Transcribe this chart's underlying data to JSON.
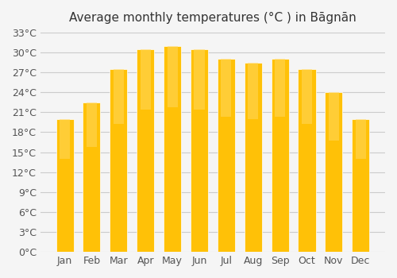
{
  "title": "Average monthly temperatures (°C ) in Bāgnān",
  "months": [
    "Jan",
    "Feb",
    "Mar",
    "Apr",
    "May",
    "Jun",
    "Jul",
    "Aug",
    "Sep",
    "Oct",
    "Nov",
    "Dec"
  ],
  "temperatures": [
    20.0,
    22.5,
    27.5,
    30.5,
    31.0,
    30.5,
    29.0,
    28.5,
    29.0,
    27.5,
    24.0,
    20.0
  ],
  "bar_color_top": "#FFC107",
  "bar_color_bottom": "#FFD966",
  "background_color": "#F5F5F5",
  "grid_color": "#CCCCCC",
  "ylim": [
    0,
    33
  ],
  "yticks": [
    0,
    3,
    6,
    9,
    12,
    15,
    18,
    21,
    24,
    27,
    30,
    33
  ],
  "title_fontsize": 11,
  "tick_fontsize": 9
}
